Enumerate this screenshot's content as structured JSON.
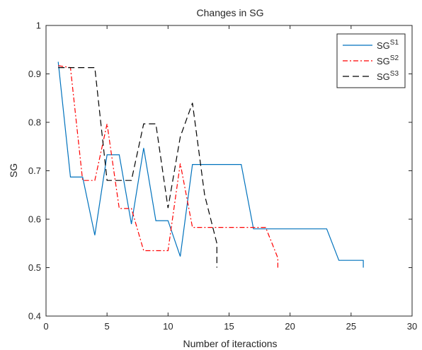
{
  "chart_data": {
    "type": "line",
    "title": "Changes in SG",
    "xlabel": "Number of iteractions",
    "ylabel": "SG",
    "xlim": [
      0,
      30
    ],
    "ylim": [
      0.4,
      1
    ],
    "xticks": [
      0,
      5,
      10,
      15,
      20,
      25,
      30
    ],
    "yticks": [
      0.4,
      0.5,
      0.6,
      0.7,
      0.8,
      0.9,
      1
    ],
    "xtick_labels": [
      "0",
      "5",
      "10",
      "15",
      "20",
      "25",
      "30"
    ],
    "ytick_labels": [
      "0.4",
      "0.5",
      "0.6",
      "0.7",
      "0.8",
      "0.9",
      "1"
    ],
    "grid": false,
    "legend_position": "top-right",
    "series": [
      {
        "name": "SG",
        "name_sup": "S1",
        "color": "#0072BD",
        "dash": "solid",
        "x": [
          1,
          2,
          3,
          4,
          5,
          6,
          7,
          8,
          9,
          10,
          11,
          12,
          13,
          14,
          15,
          16,
          17,
          18,
          19,
          20,
          21,
          22,
          23,
          24,
          25,
          26,
          26
        ],
        "y": [
          0.925,
          0.687,
          0.687,
          0.567,
          0.733,
          0.733,
          0.59,
          0.747,
          0.597,
          0.597,
          0.523,
          0.713,
          0.713,
          0.713,
          0.713,
          0.713,
          0.58,
          0.58,
          0.58,
          0.58,
          0.58,
          0.58,
          0.58,
          0.515,
          0.515,
          0.515,
          0.5
        ]
      },
      {
        "name": "SG",
        "name_sup": "S2",
        "color": "#FF0000",
        "dash": "dashdot",
        "x": [
          1,
          2,
          3,
          4,
          5,
          6,
          7,
          8,
          9,
          10,
          11,
          12,
          13,
          14,
          15,
          16,
          17,
          18,
          19,
          19
        ],
        "y": [
          0.917,
          0.913,
          0.68,
          0.68,
          0.797,
          0.622,
          0.622,
          0.535,
          0.535,
          0.535,
          0.715,
          0.583,
          0.583,
          0.583,
          0.583,
          0.583,
          0.583,
          0.583,
          0.52,
          0.5
        ]
      },
      {
        "name": "SG",
        "name_sup": "S3",
        "color": "#000000",
        "dash": "dashed",
        "x": [
          1,
          2,
          3,
          4,
          5,
          6,
          7,
          8,
          9,
          10,
          11,
          12,
          13,
          14,
          14
        ],
        "y": [
          0.913,
          0.913,
          0.913,
          0.913,
          0.68,
          0.68,
          0.68,
          0.797,
          0.797,
          0.623,
          0.77,
          0.84,
          0.65,
          0.55,
          0.5
        ]
      }
    ]
  }
}
